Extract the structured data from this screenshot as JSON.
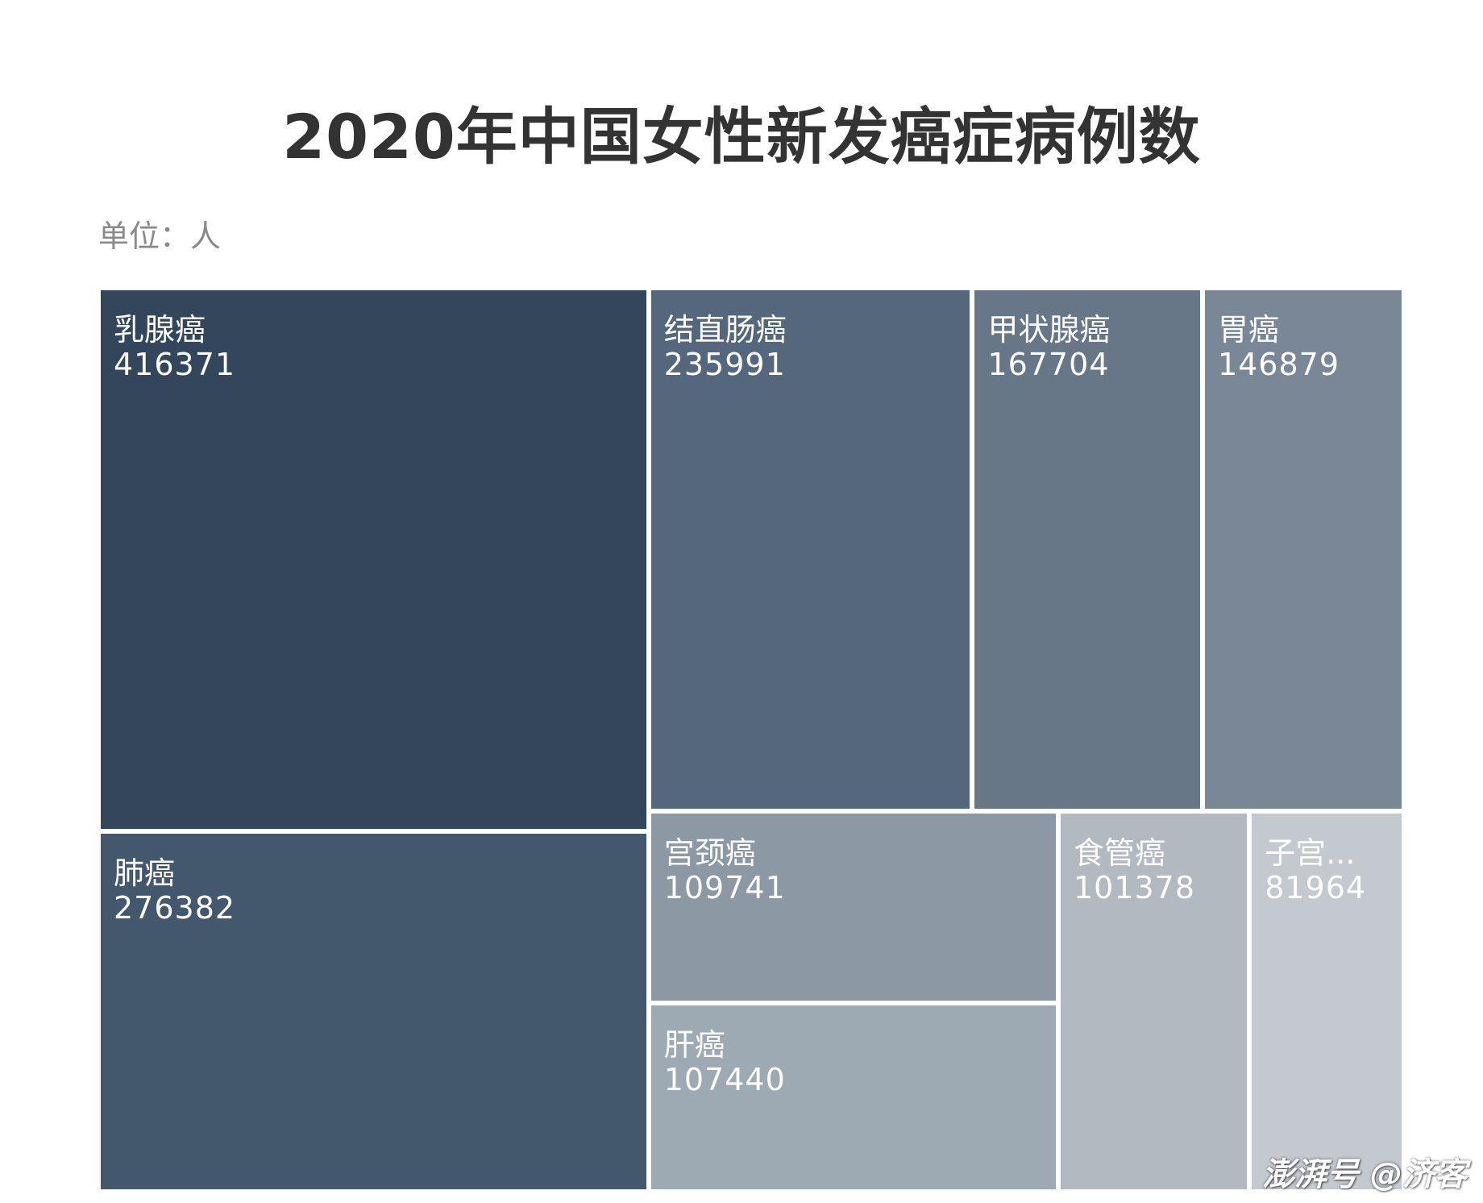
{
  "title": "2020年中国女性新发癌症病例数",
  "unit_label": "单位：人",
  "watermark": "澎湃号 @济客",
  "chart_data": {
    "type": "treemap",
    "title": "2020年中国女性新发癌症病例数",
    "unit": "人",
    "items": [
      {
        "name": "乳腺癌",
        "label": "乳腺癌",
        "value": 416371,
        "color": "#33465c"
      },
      {
        "name": "肺癌",
        "label": "肺癌",
        "value": 276382,
        "color": "#43586d"
      },
      {
        "name": "结直肠癌",
        "label": "结直肠癌",
        "value": 235991,
        "color": "#55677d"
      },
      {
        "name": "甲状腺癌",
        "label": "甲状腺癌",
        "value": 167704,
        "color": "#677788"
      },
      {
        "name": "胃癌",
        "label": "胃癌",
        "value": 146879,
        "color": "#7a8797"
      },
      {
        "name": "宫颈癌",
        "label": "宫颈癌",
        "value": 109741,
        "color": "#8c98a4"
      },
      {
        "name": "肝癌",
        "label": "肝癌",
        "value": 107440,
        "color": "#9eaab3"
      },
      {
        "name": "食管癌",
        "label": "食管癌",
        "value": 101378,
        "color": "#b2b9c0"
      },
      {
        "name": "子宫体癌",
        "label": "子宫...",
        "value": 81964,
        "color": "#c4c9cf"
      }
    ]
  }
}
